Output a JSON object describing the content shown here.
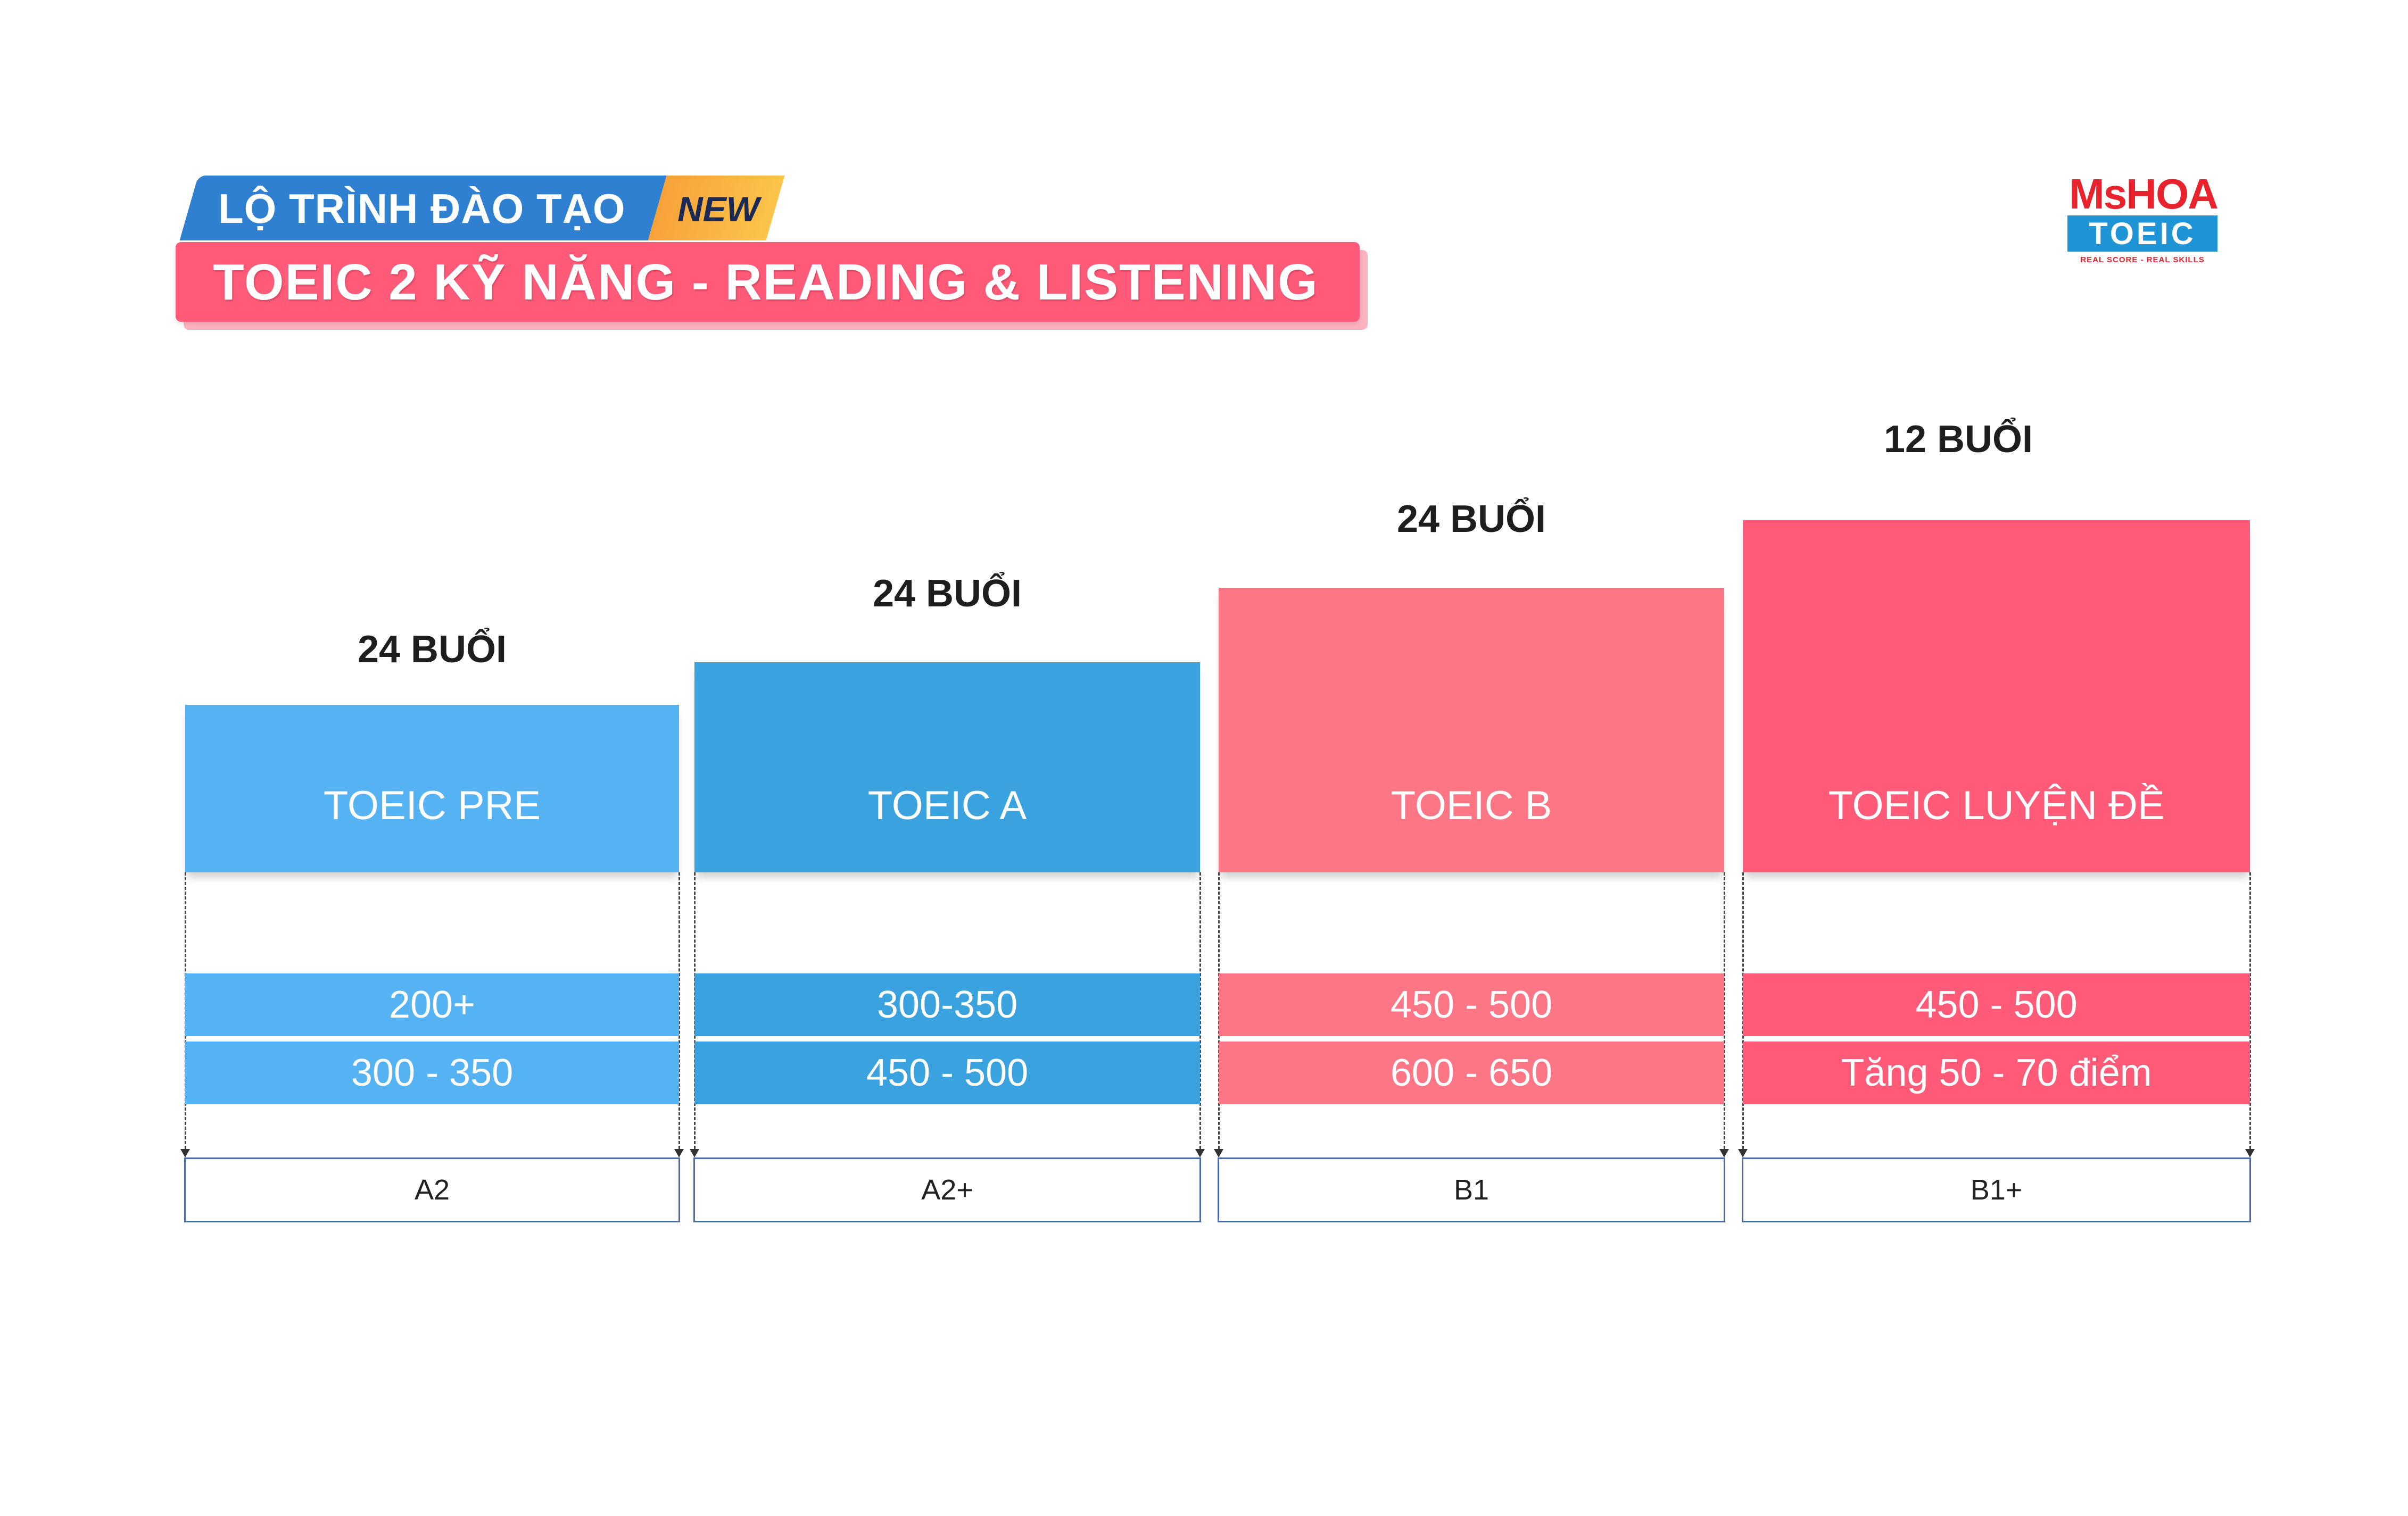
{
  "header": {
    "route_label": "LỘ TRÌNH ĐÀO TẠO",
    "new_badge": "NEW",
    "title": "TOEIC 2 KỸ NĂNG - READING & LISTENING"
  },
  "logo": {
    "brand": "MsHOA",
    "product": "TOEIC",
    "tagline": "REAL SCORE - REAL SKILLS"
  },
  "colors": {
    "banner_blue": "#2f80d0",
    "banner_pink": "#ff5b79",
    "badge_orange": "#f6a23a",
    "light_blue": "#56b3f3",
    "blue": "#3aa3df",
    "light_pink": "#fc7685",
    "pink": "#ff5a77"
  },
  "courses": [
    {
      "sessions": "24 BUỔI",
      "name": "TOEIC PRE",
      "input_score": "200+",
      "output_score": "300 - 350",
      "level": "A2",
      "color": "#56b3f3"
    },
    {
      "sessions": "24 BUỔI",
      "name": "TOEIC A",
      "input_score": "300-350",
      "output_score": "450 - 500",
      "level": "A2+",
      "color": "#3aa3df"
    },
    {
      "sessions": "24 BUỔI",
      "name": "TOEIC B",
      "input_score": "450 - 500",
      "output_score": "600 - 650",
      "level": "B1",
      "color": "#fc7685"
    },
    {
      "sessions": "12 BUỔI",
      "name": "TOEIC LUYỆN ĐỀ",
      "input_score": "450 - 500",
      "output_score": "Tăng  50 - 70 điểm",
      "level": "B1+",
      "color": "#ff5a77"
    }
  ]
}
